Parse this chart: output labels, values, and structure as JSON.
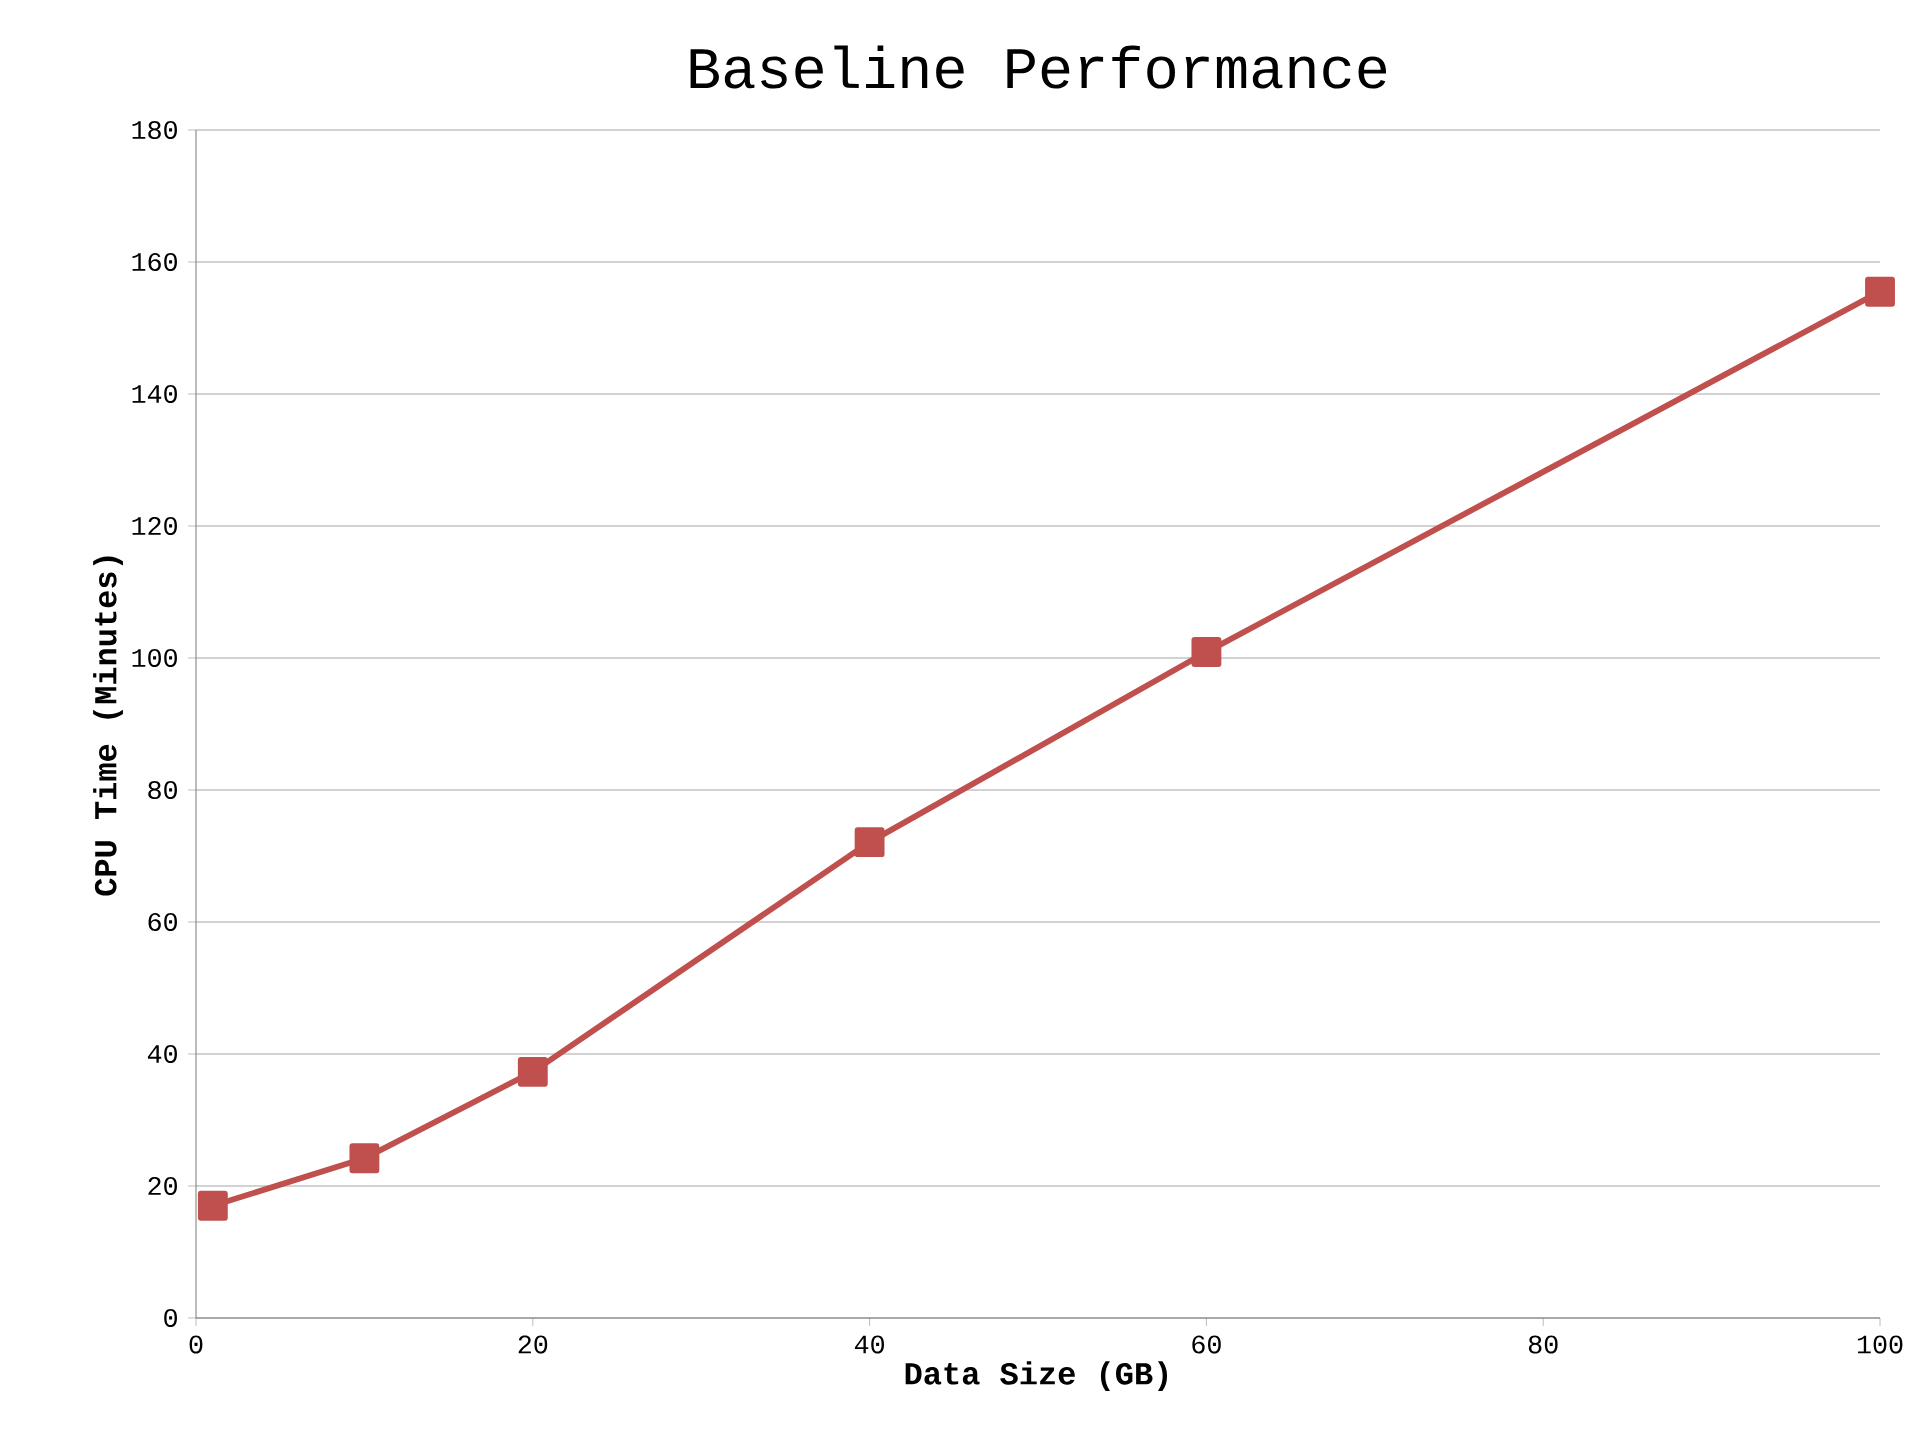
{
  "chart_data": {
    "type": "line",
    "title": "Baseline Performance",
    "xlabel": "Data Size (GB)",
    "ylabel": "CPU Time (Minutes)",
    "x": [
      1,
      10,
      20,
      40,
      60,
      100
    ],
    "series": [
      {
        "color": "#c0504d",
        "values": [
          17,
          24.2,
          37.3,
          72.1,
          100.9,
          155.5
        ]
      }
    ],
    "xlim": [
      0,
      100
    ],
    "xticks": [
      0,
      20,
      40,
      60,
      80,
      100
    ],
    "ylim": [
      0,
      180
    ],
    "yticks": [
      0,
      20,
      40,
      60,
      80,
      100,
      120,
      140,
      160,
      180
    ],
    "grid": "y",
    "marker": "square",
    "line_style": "solid"
  }
}
